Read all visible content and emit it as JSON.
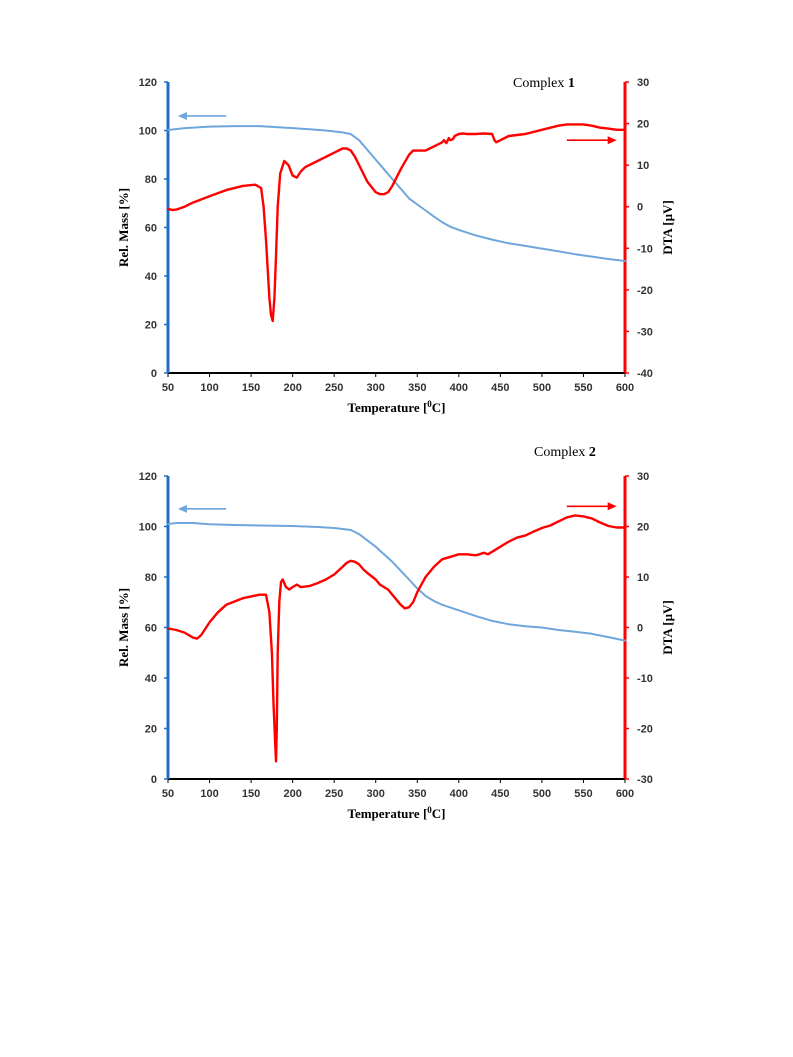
{
  "chart_data": [
    {
      "type": "line",
      "label_prefix": "Complex ",
      "label_number": "1",
      "xlabel_main": "Temperature [",
      "xlabel_unit": "C]",
      "xlabel_sup": "0",
      "ylabel_left": "Rel. Mass [%]",
      "ylabel_right": "DTA [µV]",
      "xlim": [
        50,
        600
      ],
      "ylim_left": [
        0,
        120
      ],
      "ylim_right": [
        -40,
        30
      ],
      "x_ticks": [
        50,
        100,
        150,
        200,
        250,
        300,
        350,
        400,
        450,
        500,
        550,
        600
      ],
      "y_ticks_left": [
        0,
        20,
        40,
        60,
        80,
        100,
        120
      ],
      "y_ticks_right": [
        -40,
        -30,
        -20,
        -10,
        0,
        10,
        20,
        30
      ],
      "left_axis_color": "#1f6fc6",
      "right_axis_color": "#ff0000",
      "series": [
        {
          "axis": "left",
          "color": "#6fa6dc",
          "x": [
            50,
            70,
            100,
            130,
            160,
            180,
            200,
            220,
            240,
            260,
            270,
            280,
            290,
            300,
            310,
            320,
            330,
            340,
            350,
            360,
            370,
            380,
            390,
            400,
            420,
            440,
            460,
            480,
            500,
            520,
            540,
            560,
            580,
            600
          ],
          "y": [
            100.2,
            101,
            101.6,
            101.8,
            101.8,
            101.4,
            101,
            100.5,
            100,
            99.2,
            98.5,
            96,
            92,
            88,
            84,
            80,
            76,
            72,
            69.5,
            67,
            64.5,
            62.2,
            60.3,
            59,
            56.8,
            55,
            53.5,
            52.4,
            51.3,
            50.2,
            49,
            48,
            47,
            46.2
          ]
        },
        {
          "axis": "right",
          "color": "#ff0000",
          "x": [
            50,
            55,
            60,
            70,
            80,
            100,
            120,
            140,
            155,
            162,
            165,
            168,
            170,
            172,
            174,
            176,
            178,
            180,
            182,
            185,
            190,
            195,
            200,
            205,
            210,
            215,
            220,
            230,
            240,
            250,
            260,
            265,
            270,
            275,
            280,
            290,
            300,
            305,
            310,
            315,
            320,
            325,
            330,
            340,
            345,
            350,
            355,
            360,
            365,
            370,
            375,
            380,
            382,
            385,
            388,
            390,
            393,
            395,
            400,
            405,
            410,
            420,
            430,
            440,
            443,
            445,
            450,
            460,
            480,
            500,
            520,
            530,
            540,
            550,
            560,
            570,
            580,
            590,
            600
          ],
          "y": [
            -0.5,
            -0.8,
            -0.7,
            0,
            1,
            2.5,
            4,
            5,
            5.3,
            4.5,
            0,
            -8,
            -15,
            -22,
            -26,
            -27.5,
            -22,
            -12,
            0,
            8,
            11,
            10,
            7.5,
            7,
            8.5,
            9.5,
            10,
            11,
            12,
            13,
            14,
            14,
            13.5,
            12,
            10,
            6,
            3.5,
            3,
            3,
            3.5,
            5,
            7,
            9,
            12.5,
            13.5,
            13.5,
            13.5,
            13.5,
            14,
            14.5,
            15,
            15.5,
            16,
            15.3,
            16.5,
            16,
            16.3,
            17,
            17.5,
            17.6,
            17.5,
            17.5,
            17.6,
            17.5,
            16,
            15.5,
            16,
            17,
            17.5,
            18.5,
            19.5,
            19.8,
            19.8,
            19.8,
            19.5,
            19,
            18.8,
            18.5,
            18.5
          ]
        }
      ],
      "arrows": [
        {
          "direction": "left",
          "axis": "left",
          "color": "#6fa6dc",
          "x_from": 120,
          "x_to": 62,
          "y": 106
        },
        {
          "direction": "right",
          "axis": "right",
          "color": "#ff0000",
          "x_from": 530,
          "x_to": 590,
          "y": 16
        }
      ],
      "grid": false,
      "legend": "none"
    },
    {
      "type": "line",
      "label_prefix": "Complex ",
      "label_number": "2",
      "xlabel_main": "Temperature [",
      "xlabel_unit": "C]",
      "xlabel_sup": "0",
      "ylabel_left": "Rel. Mass [%]",
      "ylabel_right": "DTA [µV]",
      "xlim": [
        50,
        600
      ],
      "ylim_left": [
        0,
        120
      ],
      "ylim_right": [
        -30,
        30
      ],
      "x_ticks": [
        50,
        100,
        150,
        200,
        250,
        300,
        350,
        400,
        450,
        500,
        550,
        600
      ],
      "y_ticks_left": [
        0,
        20,
        40,
        60,
        80,
        100,
        120
      ],
      "y_ticks_right": [
        -30,
        -20,
        -10,
        0,
        10,
        20,
        30
      ],
      "left_axis_color": "#1f6fc6",
      "right_axis_color": "#ff0000",
      "series": [
        {
          "axis": "left",
          "color": "#6fa6dc",
          "x": [
            50,
            60,
            80,
            100,
            130,
            160,
            200,
            230,
            250,
            270,
            280,
            290,
            300,
            310,
            320,
            330,
            340,
            350,
            360,
            370,
            380,
            400,
            420,
            440,
            460,
            480,
            500,
            520,
            540,
            560,
            580,
            600
          ],
          "y": [
            101,
            101.4,
            101.4,
            100.9,
            100.6,
            100.4,
            100.2,
            99.8,
            99.4,
            98.6,
            97,
            94.5,
            92,
            89,
            86,
            82.5,
            79,
            75.5,
            72.5,
            70.5,
            69,
            66.8,
            64.6,
            62.6,
            61.3,
            60.5,
            60,
            59,
            58.3,
            57.5,
            56.2,
            54.8
          ]
        },
        {
          "axis": "right",
          "color": "#ff0000",
          "x": [
            50,
            60,
            70,
            80,
            85,
            90,
            100,
            110,
            120,
            140,
            160,
            168,
            172,
            175,
            177,
            179,
            180,
            181,
            182,
            184,
            186,
            188,
            192,
            196,
            200,
            205,
            210,
            220,
            230,
            240,
            250,
            260,
            265,
            270,
            275,
            280,
            285,
            290,
            300,
            305,
            310,
            315,
            320,
            325,
            330,
            335,
            340,
            345,
            350,
            355,
            360,
            370,
            380,
            390,
            400,
            410,
            420,
            425,
            430,
            435,
            440,
            450,
            460,
            470,
            480,
            490,
            500,
            510,
            520,
            530,
            540,
            550,
            560,
            570,
            580,
            590,
            600
          ],
          "y": [
            -0.2,
            -0.5,
            -1,
            -2,
            -2.2,
            -1.5,
            1,
            3,
            4.5,
            5.8,
            6.5,
            6.5,
            3,
            -5,
            -15,
            -23,
            -26.5,
            -20,
            -5,
            5,
            9,
            9.5,
            8,
            7.5,
            8,
            8.5,
            8,
            8.2,
            8.8,
            9.5,
            10.5,
            12,
            12.8,
            13.2,
            13,
            12.5,
            11.5,
            10.8,
            9.5,
            8.5,
            8,
            7.5,
            6.5,
            5.5,
            4.5,
            3.8,
            4,
            5,
            7,
            8.5,
            10,
            12,
            13.5,
            14,
            14.5,
            14.5,
            14.3,
            14.5,
            14.8,
            14.5,
            15,
            16,
            17,
            17.8,
            18.2,
            19,
            19.7,
            20.2,
            21,
            21.8,
            22.2,
            22,
            21.6,
            20.8,
            20.1,
            19.8,
            19.8
          ]
        }
      ],
      "arrows": [
        {
          "direction": "left",
          "axis": "left",
          "color": "#6fa6dc",
          "x_from": 120,
          "x_to": 62,
          "y": 107
        },
        {
          "direction": "right",
          "axis": "right",
          "color": "#ff0000",
          "x_from": 530,
          "x_to": 590,
          "y": 24
        }
      ],
      "grid": false,
      "legend": "none"
    }
  ]
}
